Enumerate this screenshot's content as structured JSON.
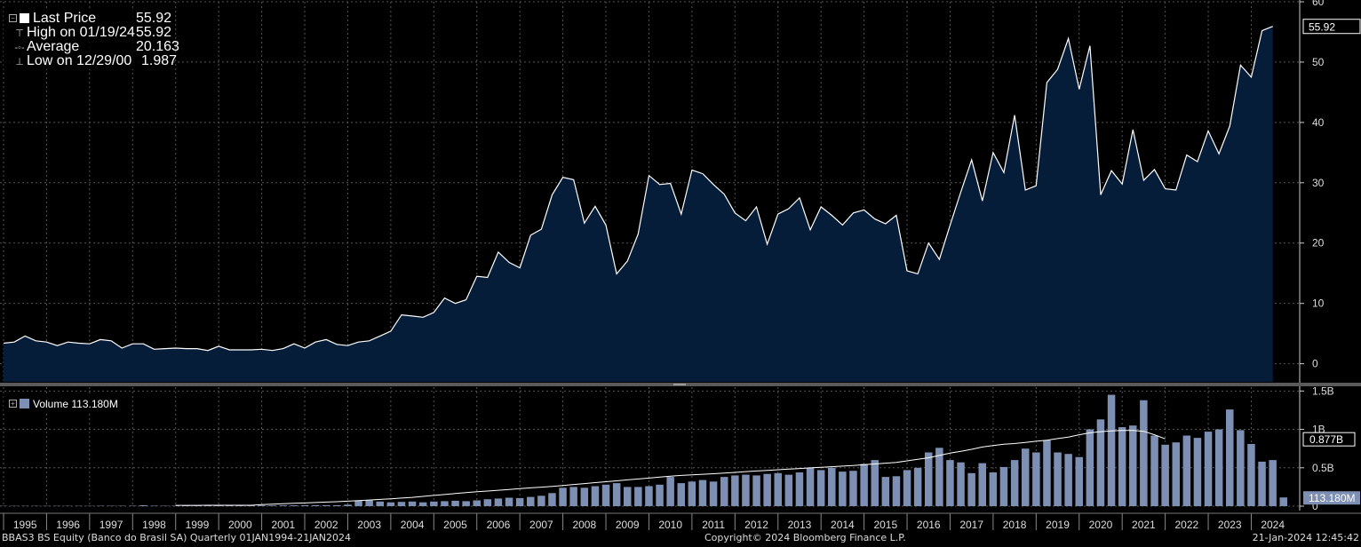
{
  "legend_top": {
    "last_price_label": "Last Price",
    "last_price_value": "55.92",
    "high_label": "High on 01/19/24",
    "high_value": "55.92",
    "average_label": "Average",
    "average_value": "20.163",
    "low_label": "Low on 12/29/00",
    "low_value": "1.987"
  },
  "legend_bottom": {
    "volume_label": "Volume 113.180M"
  },
  "footer": {
    "left": "BBAS3 BS Equity (Banco do Brasil SA)  Quarterly 01JAN1994-21JAN2024",
    "center": "Copyright© 2024 Bloomberg Finance L.P.",
    "right": "21-Jan-2024 12:45:42"
  },
  "colors": {
    "background": "#000000",
    "price_line": "#ffffff",
    "price_fill": "#061d3a",
    "volume_bar": "#7d8fb2",
    "moving_average": "#ffffff",
    "price_tag": "#ffffff",
    "volume_tag": "#7d8fb2",
    "grid": "#555555"
  },
  "chart_data": [
    {
      "type": "area",
      "series": [
        {
          "name": "Last Price",
          "start": "1995Q1",
          "frequency": "quarterly",
          "values": [
            3.4,
            3.6,
            4.6,
            3.8,
            3.6,
            3.0,
            3.6,
            3.4,
            3.3,
            4.0,
            3.8,
            2.6,
            3.3,
            3.3,
            2.4,
            2.5,
            2.6,
            2.5,
            2.5,
            2.2,
            2.9,
            2.3,
            2.3,
            2.3,
            2.4,
            2.2,
            2.5,
            3.3,
            2.6,
            3.6,
            4.0,
            3.2,
            3.0,
            3.6,
            3.8,
            4.6,
            5.4,
            8.1,
            7.9,
            7.7,
            8.5,
            10.9,
            10.0,
            10.6,
            14.5,
            14.3,
            18.5,
            16.8,
            15.9,
            21.3,
            22.3,
            28.0,
            30.9,
            30.5,
            23.3,
            26.1,
            23.0,
            14.9,
            17.0,
            21.5,
            31.2,
            29.7,
            29.9,
            24.8,
            32.1,
            31.5,
            29.7,
            28.1,
            25.0,
            23.7,
            26.0,
            19.8,
            24.8,
            25.7,
            27.5,
            22.2,
            26.0,
            24.6,
            23.0,
            25.0,
            25.5,
            24.0,
            23.2,
            24.6,
            15.4,
            14.9,
            20.0,
            17.3,
            23.0,
            28.5,
            33.8,
            27.0,
            35.0,
            31.7,
            41.2,
            28.8,
            29.5,
            46.6,
            48.8,
            53.9,
            45.5,
            52.7,
            28.0,
            32.0,
            29.8,
            38.8,
            30.4,
            32.2,
            29.0,
            28.8,
            34.6,
            33.5,
            38.6,
            34.8,
            39.4,
            49.5,
            47.5,
            55.2,
            55.92
          ]
        }
      ],
      "ylim": [
        -3,
        60
      ],
      "yticks": [
        0,
        10,
        20,
        30,
        40,
        50,
        60
      ],
      "x_tick_labels": [
        "1995",
        "1996",
        "1997",
        "1998",
        "1999",
        "2000",
        "2001",
        "2002",
        "2003",
        "2004",
        "2005",
        "2006",
        "2007",
        "2008",
        "2009",
        "2010",
        "2011",
        "2012",
        "2013",
        "2014",
        "2015",
        "2016",
        "2017",
        "2018",
        "2019",
        "2020",
        "2021",
        "2022",
        "2023",
        "2024"
      ],
      "last_value_tag": "55.92",
      "grid": true,
      "legend_position": "top-left"
    },
    {
      "type": "bar",
      "series": [
        {
          "name": "Volume",
          "start": "1995Q1",
          "frequency": "quarterly",
          "units": "millions",
          "values": [
            4,
            3,
            3,
            3,
            3,
            3,
            4,
            4,
            4,
            5,
            5,
            5,
            6,
            12,
            6,
            5,
            6,
            9,
            8,
            8,
            10,
            9,
            10,
            10,
            10,
            9,
            10,
            10,
            12,
            13,
            12,
            12,
            20,
            70,
            75,
            60,
            50,
            55,
            60,
            50,
            60,
            65,
            70,
            65,
            75,
            90,
            100,
            110,
            105,
            120,
            135,
            170,
            240,
            250,
            240,
            260,
            280,
            300,
            250,
            250,
            260,
            280,
            380,
            300,
            320,
            340,
            320,
            380,
            400,
            410,
            400,
            420,
            430,
            410,
            440,
            500,
            470,
            500,
            450,
            460,
            550,
            600,
            380,
            390,
            470,
            500,
            700,
            760,
            600,
            570,
            430,
            560,
            440,
            510,
            600,
            750,
            700,
            860,
            700,
            680,
            640,
            1000,
            1130,
            1450,
            1030,
            1050,
            1380,
            920,
            800,
            830,
            920,
            890,
            970,
            1000,
            1260,
            990,
            810,
            580,
            600,
            113.18
          ]
        },
        {
          "name": "Moving Average",
          "start": "1999Q1",
          "frequency": "quarterly",
          "units": "millions",
          "values": [
            10,
            10,
            10,
            11,
            11,
            11,
            11,
            12,
            20,
            26,
            32,
            37,
            42,
            47,
            53,
            58,
            65,
            72,
            80,
            88,
            96,
            105,
            115,
            127,
            140,
            152,
            164,
            176,
            187,
            197,
            207,
            217,
            228,
            238,
            248,
            258,
            270,
            282,
            294,
            306,
            318,
            330,
            342,
            354,
            366,
            378,
            390,
            400,
            408,
            415,
            422,
            430,
            440,
            450,
            458,
            466,
            474,
            482,
            490,
            498,
            506,
            514,
            522,
            530,
            540,
            550,
            560,
            570,
            590,
            610,
            630,
            660,
            690,
            715,
            740,
            770,
            790,
            806,
            815,
            830,
            845,
            860,
            880,
            900,
            930,
            955,
            970,
            980,
            985,
            985,
            975,
            930,
            877
          ]
        }
      ],
      "ylim": [
        0,
        1550
      ],
      "yticks_labels": [
        "0",
        "0.5B",
        "1B",
        "1.5B"
      ],
      "yticks_values": [
        0,
        500,
        1000,
        1500
      ],
      "last_value_tags": [
        "0.877B",
        "113.180M"
      ],
      "grid": true,
      "legend_position": "top-left"
    }
  ]
}
